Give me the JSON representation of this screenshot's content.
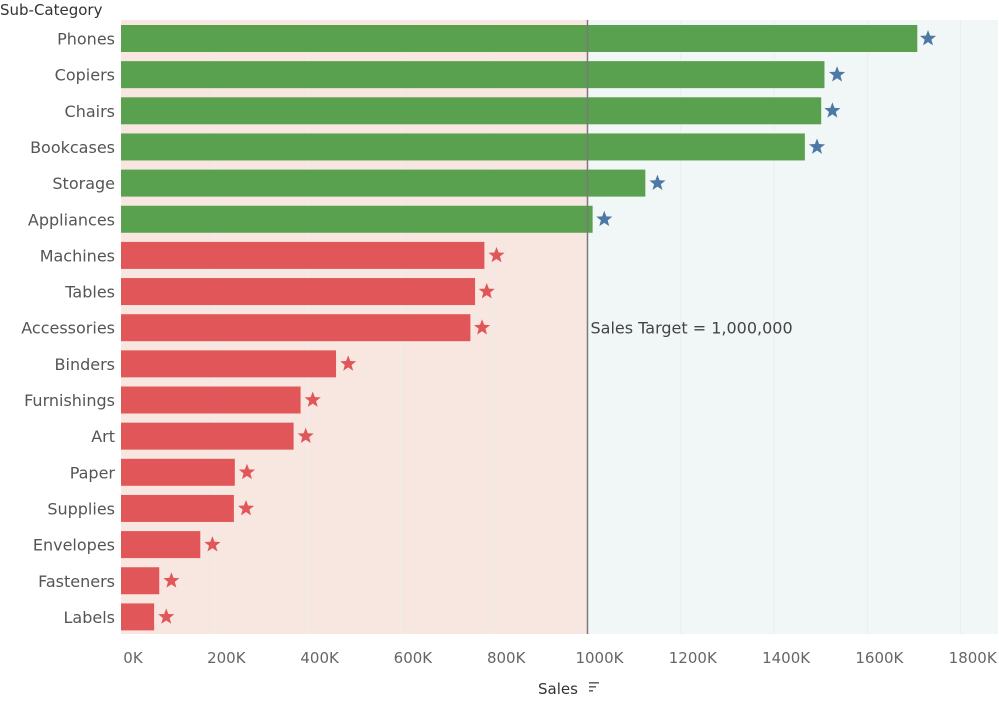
{
  "chart_data": {
    "type": "bar",
    "orientation": "horizontal",
    "row_header": "Sub-Category",
    "xlabel": "Sales",
    "xlim": [
      0,
      1880000
    ],
    "grid": true,
    "x_ticks": [
      0,
      200000,
      400000,
      600000,
      800000,
      1000000,
      1200000,
      1400000,
      1600000,
      1800000
    ],
    "x_tick_labels": [
      "0K",
      "200K",
      "400K",
      "600K",
      "800K",
      "1000K",
      "1200K",
      "1400K",
      "1600K",
      "1800K"
    ],
    "categories": [
      "Phones",
      "Copiers",
      "Chairs",
      "Bookcases",
      "Storage",
      "Appliances",
      "Machines",
      "Tables",
      "Accessories",
      "Binders",
      "Furnishings",
      "Art",
      "Paper",
      "Supplies",
      "Envelopes",
      "Fasteners",
      "Labels"
    ],
    "values": [
      1707000,
      1508000,
      1501000,
      1466000,
      1124000,
      1011000,
      779000,
      759000,
      749000,
      461000,
      385000,
      370000,
      244000,
      242000,
      170000,
      82000,
      71000
    ],
    "target_markers": [
      1730000,
      1535000,
      1525000,
      1492000,
      1150000,
      1036000,
      805000,
      784000,
      774000,
      487000,
      411000,
      396000,
      270000,
      268000,
      196000,
      108000,
      97000
    ],
    "reference_line": {
      "value": 1000000,
      "label": "Sales Target = 1,000,000"
    },
    "colors": {
      "above_target": "#59A14F",
      "below_target": "#E15759",
      "star_above": "#4E79A7",
      "star_below": "#E15759",
      "band_below": "#F8E7E0",
      "band_above": "#F1F7F7",
      "ref_line": "#7A7A7A",
      "grid": "#EDEDED"
    }
  }
}
